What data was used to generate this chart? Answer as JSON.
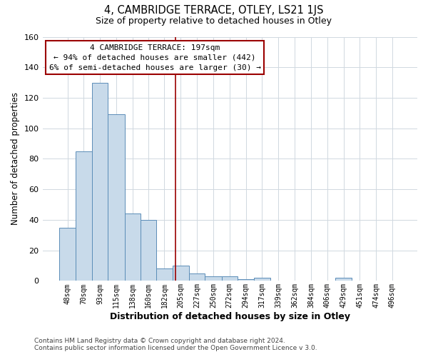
{
  "title": "4, CAMBRIDGE TERRACE, OTLEY, LS21 1JS",
  "subtitle": "Size of property relative to detached houses in Otley",
  "xlabel": "Distribution of detached houses by size in Otley",
  "ylabel": "Number of detached properties",
  "bar_heights": [
    35,
    85,
    130,
    109,
    44,
    40,
    8,
    10,
    5,
    3,
    3,
    1,
    2,
    0,
    0,
    0,
    0,
    2,
    0,
    0,
    0
  ],
  "bin_edges": [
    37,
    59,
    82,
    104,
    127,
    149,
    171,
    193,
    216,
    238,
    261,
    283,
    306,
    328,
    351,
    373,
    396,
    418,
    441,
    463,
    486,
    508
  ],
  "tick_labels": [
    "48sqm",
    "70sqm",
    "93sqm",
    "115sqm",
    "138sqm",
    "160sqm",
    "182sqm",
    "205sqm",
    "227sqm",
    "250sqm",
    "272sqm",
    "294sqm",
    "317sqm",
    "339sqm",
    "362sqm",
    "384sqm",
    "406sqm",
    "429sqm",
    "451sqm",
    "474sqm",
    "496sqm"
  ],
  "bar_color": "#c8daea",
  "bar_edge_color": "#5b8db8",
  "property_line_x": 197,
  "property_line_color": "#9b0000",
  "annotation_title": "4 CAMBRIDGE TERRACE: 197sqm",
  "annotation_line1": "← 94% of detached houses are smaller (442)",
  "annotation_line2": "6% of semi-detached houses are larger (30) →",
  "annotation_box_facecolor": "#ffffff",
  "annotation_box_edgecolor": "#9b0000",
  "footer_line1": "Contains HM Land Registry data © Crown copyright and database right 2024.",
  "footer_line2": "Contains public sector information licensed under the Open Government Licence v 3.0.",
  "ylim": [
    0,
    160
  ],
  "yticks": [
    0,
    20,
    40,
    60,
    80,
    100,
    120,
    140,
    160
  ],
  "background_color": "#ffffff",
  "grid_color": "#d0d8e0"
}
